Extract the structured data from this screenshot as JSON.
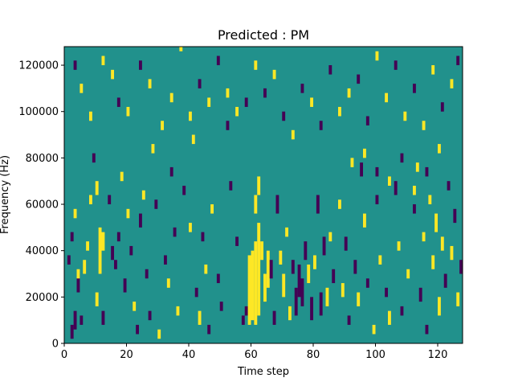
{
  "chart_data": {
    "type": "heatmap",
    "title": "Predicted : PM",
    "xlabel": "Time step",
    "ylabel": "Frequency (Hz)",
    "xlim": [
      0,
      128
    ],
    "ylim": [
      0,
      128000
    ],
    "x_ticks": [
      0,
      20,
      40,
      60,
      80,
      100,
      120
    ],
    "y_ticks": [
      0,
      20000,
      40000,
      60000,
      80000,
      100000,
      120000
    ],
    "grid": false,
    "colormap": {
      "background": "#21918c",
      "low": "#440154",
      "high": "#fde725"
    },
    "cells": [
      [
        2,
        2000,
        8000,
        "low"
      ],
      [
        3,
        6000,
        14000,
        "low"
      ],
      [
        4,
        22000,
        30000,
        "low"
      ],
      [
        5,
        8000,
        12000,
        "low"
      ],
      [
        1,
        34000,
        38000,
        "low"
      ],
      [
        2,
        44000,
        48000,
        "low"
      ],
      [
        3,
        54000,
        58000,
        "high"
      ],
      [
        4,
        28000,
        32000,
        "high"
      ],
      [
        6,
        30000,
        36000,
        "high"
      ],
      [
        7,
        40000,
        44000,
        "high"
      ],
      [
        8,
        60000,
        64000,
        "high"
      ],
      [
        9,
        78000,
        82000,
        "low"
      ],
      [
        10,
        64000,
        70000,
        "high"
      ],
      [
        10,
        16000,
        22000,
        "high"
      ],
      [
        11,
        30000,
        50000,
        "high"
      ],
      [
        12,
        40000,
        48000,
        "high"
      ],
      [
        12,
        8000,
        14000,
        "low"
      ],
      [
        14,
        60000,
        64000,
        "low"
      ],
      [
        15,
        36000,
        42000,
        "low"
      ],
      [
        16,
        32000,
        36000,
        "low"
      ],
      [
        17,
        44000,
        48000,
        "low"
      ],
      [
        18,
        70000,
        74000,
        "high"
      ],
      [
        19,
        22000,
        28000,
        "low"
      ],
      [
        20,
        54000,
        58000,
        "high"
      ],
      [
        21,
        38000,
        42000,
        "low"
      ],
      [
        22,
        14000,
        18000,
        "high"
      ],
      [
        23,
        4000,
        8000,
        "low"
      ],
      [
        24,
        50000,
        56000,
        "low"
      ],
      [
        25,
        62000,
        66000,
        "high"
      ],
      [
        26,
        28000,
        32000,
        "low"
      ],
      [
        27,
        10000,
        14000,
        "low"
      ],
      [
        28,
        82000,
        86000,
        "high"
      ],
      [
        29,
        58000,
        62000,
        "low"
      ],
      [
        30,
        2000,
        6000,
        "high"
      ],
      [
        32,
        34000,
        38000,
        "low"
      ],
      [
        33,
        24000,
        28000,
        "high"
      ],
      [
        34,
        72000,
        76000,
        "low"
      ],
      [
        35,
        46000,
        50000,
        "low"
      ],
      [
        36,
        12000,
        16000,
        "high"
      ],
      [
        38,
        64000,
        68000,
        "low"
      ],
      [
        40,
        48000,
        52000,
        "high"
      ],
      [
        41,
        86000,
        90000,
        "high"
      ],
      [
        42,
        20000,
        24000,
        "low"
      ],
      [
        43,
        8000,
        14000,
        "high"
      ],
      [
        44,
        44000,
        48000,
        "low"
      ],
      [
        45,
        30000,
        34000,
        "high"
      ],
      [
        46,
        4000,
        8000,
        "low"
      ],
      [
        47,
        56000,
        60000,
        "high"
      ],
      [
        49,
        26000,
        30000,
        "low"
      ],
      [
        50,
        14000,
        18000,
        "low"
      ],
      [
        52,
        106000,
        110000,
        "high"
      ],
      [
        53,
        66000,
        70000,
        "low"
      ],
      [
        55,
        42000,
        46000,
        "low"
      ],
      [
        57,
        8000,
        12000,
        "low"
      ],
      [
        58,
        12000,
        16000,
        "low"
      ],
      [
        59,
        8000,
        38000,
        "high"
      ],
      [
        60,
        10000,
        40000,
        "high"
      ],
      [
        61,
        8000,
        44000,
        "high"
      ],
      [
        62,
        12000,
        52000,
        "high"
      ],
      [
        61,
        56000,
        64000,
        "high"
      ],
      [
        62,
        64000,
        72000,
        "high"
      ],
      [
        63,
        36000,
        44000,
        "high"
      ],
      [
        64,
        18000,
        30000,
        "high"
      ],
      [
        65,
        24000,
        40000,
        "high"
      ],
      [
        66,
        28000,
        36000,
        "low"
      ],
      [
        67,
        8000,
        14000,
        "low"
      ],
      [
        68,
        56000,
        64000,
        "low"
      ],
      [
        69,
        34000,
        40000,
        "high"
      ],
      [
        70,
        20000,
        30000,
        "high"
      ],
      [
        71,
        46000,
        50000,
        "high"
      ],
      [
        72,
        10000,
        16000,
        "high"
      ],
      [
        73,
        30000,
        36000,
        "low"
      ],
      [
        74,
        12000,
        24000,
        "low"
      ],
      [
        75,
        20000,
        34000,
        "low"
      ],
      [
        76,
        16000,
        28000,
        "low"
      ],
      [
        77,
        36000,
        44000,
        "low"
      ],
      [
        78,
        26000,
        34000,
        "high"
      ],
      [
        79,
        10000,
        20000,
        "low"
      ],
      [
        80,
        32000,
        38000,
        "high"
      ],
      [
        81,
        56000,
        64000,
        "low"
      ],
      [
        82,
        12000,
        22000,
        "low"
      ],
      [
        83,
        38000,
        46000,
        "low"
      ],
      [
        84,
        16000,
        24000,
        "high"
      ],
      [
        85,
        44000,
        48000,
        "high"
      ],
      [
        86,
        26000,
        32000,
        "low"
      ],
      [
        88,
        58000,
        62000,
        "high"
      ],
      [
        89,
        20000,
        26000,
        "high"
      ],
      [
        90,
        40000,
        46000,
        "low"
      ],
      [
        91,
        8000,
        12000,
        "low"
      ],
      [
        93,
        30000,
        36000,
        "low"
      ],
      [
        94,
        16000,
        22000,
        "high"
      ],
      [
        95,
        72000,
        78000,
        "low"
      ],
      [
        96,
        50000,
        56000,
        "high"
      ],
      [
        97,
        24000,
        28000,
        "low"
      ],
      [
        99,
        4000,
        8000,
        "high"
      ],
      [
        100,
        60000,
        64000,
        "low"
      ],
      [
        101,
        34000,
        38000,
        "high"
      ],
      [
        103,
        20000,
        24000,
        "low"
      ],
      [
        104,
        8000,
        14000,
        "high"
      ],
      [
        106,
        64000,
        70000,
        "low"
      ],
      [
        107,
        40000,
        44000,
        "high"
      ],
      [
        108,
        12000,
        16000,
        "low"
      ],
      [
        110,
        28000,
        32000,
        "high"
      ],
      [
        112,
        56000,
        60000,
        "low"
      ],
      [
        113,
        74000,
        78000,
        "high"
      ],
      [
        114,
        18000,
        24000,
        "low"
      ],
      [
        115,
        44000,
        48000,
        "high"
      ],
      [
        116,
        4000,
        8000,
        "low"
      ],
      [
        117,
        60000,
        64000,
        "high"
      ],
      [
        118,
        32000,
        38000,
        "high"
      ],
      [
        119,
        48000,
        56000,
        "high"
      ],
      [
        120,
        12000,
        20000,
        "high"
      ],
      [
        121,
        40000,
        46000,
        "high"
      ],
      [
        122,
        24000,
        30000,
        "low"
      ],
      [
        123,
        66000,
        70000,
        "low"
      ],
      [
        124,
        36000,
        42000,
        "high"
      ],
      [
        125,
        52000,
        58000,
        "low"
      ],
      [
        126,
        16000,
        22000,
        "high"
      ],
      [
        127,
        30000,
        36000,
        "low"
      ],
      [
        3,
        118000,
        122000,
        "low"
      ],
      [
        5,
        108000,
        112000,
        "high"
      ],
      [
        8,
        96000,
        100000,
        "high"
      ],
      [
        12,
        120000,
        124000,
        "high"
      ],
      [
        15,
        114000,
        118000,
        "high"
      ],
      [
        17,
        102000,
        106000,
        "low"
      ],
      [
        20,
        98000,
        102000,
        "high"
      ],
      [
        24,
        118000,
        122000,
        "low"
      ],
      [
        27,
        110000,
        114000,
        "high"
      ],
      [
        31,
        92000,
        96000,
        "high"
      ],
      [
        34,
        104000,
        108000,
        "high"
      ],
      [
        37,
        126000,
        128000,
        "high"
      ],
      [
        40,
        96000,
        100000,
        "high"
      ],
      [
        43,
        110000,
        114000,
        "low"
      ],
      [
        46,
        102000,
        106000,
        "high"
      ],
      [
        49,
        120000,
        124000,
        "low"
      ],
      [
        52,
        92000,
        96000,
        "low"
      ],
      [
        55,
        98000,
        102000,
        "high"
      ],
      [
        58,
        102000,
        106000,
        "low"
      ],
      [
        61,
        118000,
        122000,
        "high"
      ],
      [
        64,
        106000,
        110000,
        "low"
      ],
      [
        67,
        114000,
        118000,
        "high"
      ],
      [
        70,
        96000,
        100000,
        "low"
      ],
      [
        73,
        88000,
        92000,
        "high"
      ],
      [
        76,
        108000,
        112000,
        "low"
      ],
      [
        79,
        102000,
        106000,
        "high"
      ],
      [
        82,
        92000,
        96000,
        "low"
      ],
      [
        85,
        116000,
        120000,
        "low"
      ],
      [
        88,
        98000,
        102000,
        "high"
      ],
      [
        91,
        106000,
        110000,
        "high"
      ],
      [
        94,
        112000,
        116000,
        "low"
      ],
      [
        97,
        94000,
        98000,
        "low"
      ],
      [
        100,
        122000,
        126000,
        "high"
      ],
      [
        103,
        104000,
        108000,
        "high"
      ],
      [
        106,
        118000,
        122000,
        "low"
      ],
      [
        109,
        96000,
        100000,
        "high"
      ],
      [
        112,
        108000,
        112000,
        "low"
      ],
      [
        115,
        92000,
        96000,
        "high"
      ],
      [
        118,
        116000,
        120000,
        "high"
      ],
      [
        121,
        100000,
        104000,
        "low"
      ],
      [
        124,
        110000,
        114000,
        "high"
      ],
      [
        126,
        120000,
        124000,
        "low"
      ],
      [
        92,
        76000,
        80000,
        "high"
      ],
      [
        96,
        80000,
        84000,
        "high"
      ],
      [
        100,
        72000,
        76000,
        "low"
      ],
      [
        104,
        68000,
        72000,
        "high"
      ],
      [
        108,
        78000,
        82000,
        "low"
      ],
      [
        112,
        64000,
        68000,
        "high"
      ],
      [
        116,
        72000,
        76000,
        "low"
      ],
      [
        120,
        82000,
        86000,
        "high"
      ]
    ]
  }
}
